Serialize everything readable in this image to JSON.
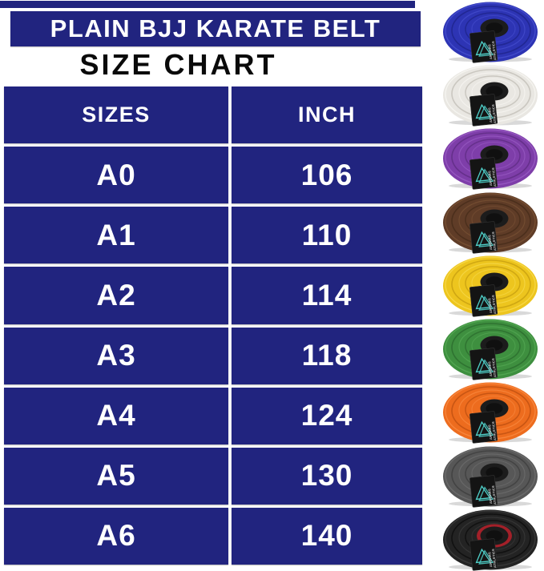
{
  "header": {
    "title": "PLAIN BJJ KARATE BELT",
    "subtitle": "SIZE CHART"
  },
  "colors": {
    "navy": "#21247f",
    "page_bg": "#ffffff",
    "table_text": "#ffffff",
    "subtitle_text": "#0a0a0a",
    "logo_teal": "#4fd0c9",
    "tag_bg": "#141414"
  },
  "size_table": {
    "columns": [
      "SIZES",
      "INCH"
    ],
    "rows": [
      {
        "size": "A0",
        "inch": "106"
      },
      {
        "size": "A1",
        "inch": "110"
      },
      {
        "size": "A2",
        "inch": "114"
      },
      {
        "size": "A3",
        "inch": "118"
      },
      {
        "size": "A4",
        "inch": "124"
      },
      {
        "size": "A5",
        "inch": "130"
      },
      {
        "size": "A6",
        "inch": "140"
      }
    ]
  },
  "brand_tag": {
    "line1": "ANWARS",
    "line2": "ATHLETICS"
  },
  "belts": [
    {
      "name": "blue-belt",
      "color": "#2d34b4",
      "shade": "#20268f",
      "light": "#4750d0"
    },
    {
      "name": "white-belt",
      "color": "#e9e7e2",
      "shade": "#c6c3bc",
      "light": "#f8f7f4"
    },
    {
      "name": "purple-belt",
      "color": "#7e3ea9",
      "shade": "#632f87",
      "light": "#9a5cc4"
    },
    {
      "name": "brown-belt",
      "color": "#5f3c27",
      "shade": "#492d1c",
      "light": "#7a5235"
    },
    {
      "name": "yellow-belt",
      "color": "#edc51e",
      "shade": "#cba312",
      "light": "#f7da4e"
    },
    {
      "name": "green-belt",
      "color": "#3e8f3f",
      "shade": "#2e7030",
      "light": "#56aa55"
    },
    {
      "name": "orange-belt",
      "color": "#ed6c1e",
      "shade": "#c35312",
      "light": "#f98b42"
    },
    {
      "name": "gray-belt",
      "color": "#575757",
      "shade": "#414141",
      "light": "#6f6f6f"
    },
    {
      "name": "black-belt",
      "color": "#232323",
      "shade": "#0f0f0f",
      "light": "#3c3c3c",
      "hole_ring": "#a32029"
    }
  ],
  "chart_data": {
    "type": "table",
    "title": "PLAIN BJJ KARATE BELT SIZE CHART",
    "columns": [
      "SIZES",
      "INCH"
    ],
    "rows": [
      [
        "A0",
        106
      ],
      [
        "A1",
        110
      ],
      [
        "A2",
        114
      ],
      [
        "A3",
        118
      ],
      [
        "A4",
        124
      ],
      [
        "A5",
        130
      ],
      [
        "A6",
        140
      ]
    ],
    "belt_colors_shown": [
      "blue",
      "white",
      "purple",
      "brown",
      "yellow",
      "green",
      "orange",
      "gray",
      "black"
    ]
  }
}
